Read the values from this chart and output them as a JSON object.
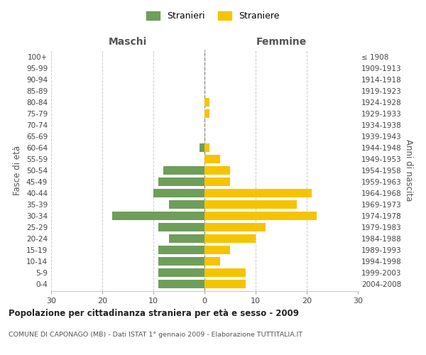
{
  "age_groups": [
    "100+",
    "95-99",
    "90-94",
    "85-89",
    "80-84",
    "75-79",
    "70-74",
    "65-69",
    "60-64",
    "55-59",
    "50-54",
    "45-49",
    "40-44",
    "35-39",
    "30-34",
    "25-29",
    "20-24",
    "15-19",
    "10-14",
    "5-9",
    "0-4"
  ],
  "birth_years": [
    "≤ 1908",
    "1909-1913",
    "1914-1918",
    "1919-1923",
    "1924-1928",
    "1929-1933",
    "1934-1938",
    "1939-1943",
    "1944-1948",
    "1949-1953",
    "1954-1958",
    "1959-1963",
    "1964-1968",
    "1969-1973",
    "1974-1978",
    "1979-1983",
    "1984-1988",
    "1989-1993",
    "1994-1998",
    "1999-2003",
    "2004-2008"
  ],
  "maschi": [
    0,
    0,
    0,
    0,
    0,
    0,
    0,
    0,
    1,
    0,
    8,
    9,
    10,
    7,
    18,
    9,
    7,
    9,
    9,
    9,
    9
  ],
  "femmine": [
    0,
    0,
    0,
    0,
    1,
    1,
    0,
    0,
    1,
    3,
    5,
    5,
    21,
    18,
    22,
    12,
    10,
    5,
    3,
    8,
    8
  ],
  "male_color": "#6f9e5b",
  "female_color": "#f5c400",
  "male_label": "Stranieri",
  "female_label": "Straniere",
  "title": "Popolazione per cittadinanza straniera per età e sesso - 2009",
  "subtitle": "COMUNE DI CAPONAGO (MB) - Dati ISTAT 1° gennaio 2009 - Elaborazione TUTTITALIA.IT",
  "xlabel_left": "Maschi",
  "xlabel_right": "Femmine",
  "ylabel_left": "Fasce di età",
  "ylabel_right": "Anni di nascita",
  "xlim": 30,
  "background_color": "#ffffff",
  "grid_color": "#cccccc"
}
